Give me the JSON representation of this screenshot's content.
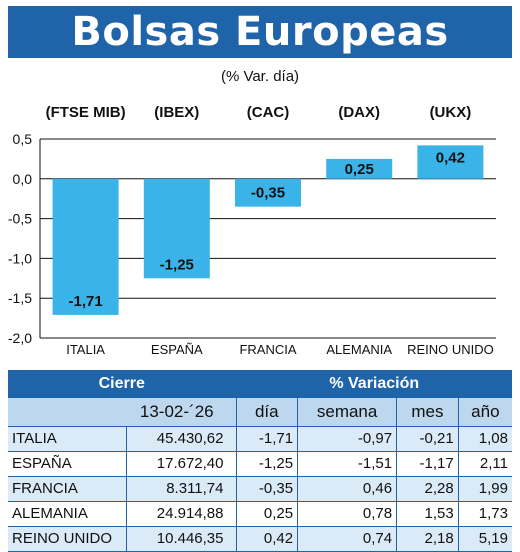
{
  "header": {
    "title": "Bolsas Europeas",
    "subtitle": "(% Var. día)"
  },
  "chart_data": {
    "type": "bar",
    "categories": [
      "ITALIA",
      "ESPAÑA",
      "FRANCIA",
      "ALEMANIA",
      "REINO UNIDO"
    ],
    "index_labels": [
      "(FTSE MIB)",
      "(IBEX)",
      "(CAC)",
      "(DAX)",
      "(UKX)"
    ],
    "value_labels": [
      "-1,71",
      "-1,25",
      "-0,35",
      "0,25",
      "0,42"
    ],
    "values": [
      -1.71,
      -1.25,
      -0.35,
      0.25,
      0.42
    ],
    "yticks": [
      "0,5",
      "0,0",
      "-0,5",
      "-1,0",
      "-1,5",
      "-2,0"
    ],
    "ylim": [
      -2.0,
      0.5
    ],
    "grid": true,
    "bar_color": "#3ab4e8"
  },
  "table": {
    "group_headers": {
      "cierre": "Cierre",
      "variacion": "% Variación"
    },
    "columns": {
      "date": "13-02-´26",
      "dia": "día",
      "semana": "semana",
      "mes": "mes",
      "ano": "año"
    },
    "rows": [
      {
        "name": "ITALIA",
        "cierre": "45.430,62",
        "dia": "-1,71",
        "semana": "-0,97",
        "mes": "-0,21",
        "ano": "1,08"
      },
      {
        "name": "ESPAÑA",
        "cierre": "17.672,40",
        "dia": "-1,25",
        "semana": "-1,51",
        "mes": "-1,17",
        "ano": "2,11"
      },
      {
        "name": "FRANCIA",
        "cierre": "8.311,74",
        "dia": "-0,35",
        "semana": "0,46",
        "mes": "2,28",
        "ano": "1,99"
      },
      {
        "name": "ALEMANIA",
        "cierre": "24.914,88",
        "dia": "0,25",
        "semana": "0,78",
        "mes": "1,53",
        "ano": "1,73"
      },
      {
        "name": "REINO UNIDO",
        "cierre": "10.446,35",
        "dia": "0,42",
        "semana": "0,74",
        "mes": "2,18",
        "ano": "5,19"
      }
    ]
  },
  "colors": {
    "header_blue": "#1f63a8",
    "bar": "#3ab4e8",
    "row_shade": "#dbeaf7",
    "subheader": "#bcd7ee"
  }
}
